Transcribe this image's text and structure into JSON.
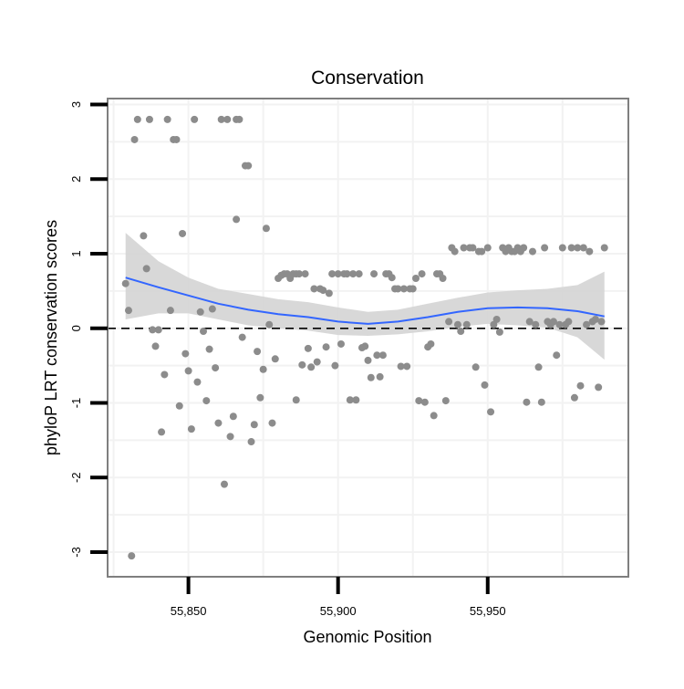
{
  "chart_data": {
    "type": "scatter",
    "title": "Conservation",
    "xlabel": "Genomic Position",
    "ylabel": "phyloP LRT conservation scores",
    "xlim": [
      55823,
      55997
    ],
    "ylim": [
      -3.33,
      3.08
    ],
    "x_ticks": [
      55850,
      55900,
      55950
    ],
    "x_tick_labels": [
      "55,850",
      "55,900",
      "55,950"
    ],
    "y_ticks": [
      -3,
      -2,
      -1,
      0,
      1,
      2,
      3
    ],
    "y_tick_labels": [
      "-3",
      "-2",
      "-1",
      "0",
      "1",
      "2",
      "3"
    ],
    "grid": true,
    "reference_line": {
      "y": 0,
      "style": "dashed",
      "color": "#000000"
    },
    "colors": {
      "points": "#8c8c8c",
      "smooth": "#3366ff",
      "ribbon": "#d4d4d4",
      "grid": "#f2f2f2",
      "frame": "#7f7f7f"
    },
    "series": [
      {
        "name": "phyloP LRT score",
        "kind": "points",
        "points": [
          [
            55829,
            0.6
          ],
          [
            55830,
            0.24
          ],
          [
            55831,
            -3.05
          ],
          [
            55832,
            2.53
          ],
          [
            55833,
            2.8
          ],
          [
            55835,
            1.24
          ],
          [
            55836,
            0.8
          ],
          [
            55837,
            2.8
          ],
          [
            55838,
            -0.02
          ],
          [
            55839,
            -0.24
          ],
          [
            55840,
            -0.02
          ],
          [
            55841,
            -1.39
          ],
          [
            55842,
            -0.62
          ],
          [
            55843,
            2.8
          ],
          [
            55844,
            0.24
          ],
          [
            55845,
            2.53
          ],
          [
            55846,
            2.53
          ],
          [
            55847,
            -1.04
          ],
          [
            55848,
            1.27
          ],
          [
            55849,
            -0.34
          ],
          [
            55850,
            -0.57
          ],
          [
            55851,
            -1.35
          ],
          [
            55852,
            2.8
          ],
          [
            55853,
            -0.72
          ],
          [
            55854,
            0.22
          ],
          [
            55855,
            -0.04
          ],
          [
            55856,
            -0.97
          ],
          [
            55857,
            -0.28
          ],
          [
            55858,
            0.26
          ],
          [
            55859,
            -0.53
          ],
          [
            55860,
            -1.27
          ],
          [
            55861,
            2.8
          ],
          [
            55862,
            -2.09
          ],
          [
            55863,
            2.8
          ],
          [
            55864,
            -1.45
          ],
          [
            55865,
            -1.18
          ],
          [
            55866,
            2.8
          ],
          [
            55866,
            1.46
          ],
          [
            55867,
            2.8
          ],
          [
            55868,
            -0.12
          ],
          [
            55869,
            2.18
          ],
          [
            55870,
            2.18
          ],
          [
            55871,
            -1.52
          ],
          [
            55872,
            -1.29
          ],
          [
            55873,
            -0.31
          ],
          [
            55874,
            -0.93
          ],
          [
            55875,
            -0.55
          ],
          [
            55876,
            1.34
          ],
          [
            55877,
            0.05
          ],
          [
            55878,
            -1.27
          ],
          [
            55879,
            -0.41
          ],
          [
            55880,
            0.67
          ],
          [
            55881,
            0.71
          ],
          [
            55882,
            0.73
          ],
          [
            55883,
            0.73
          ],
          [
            55884,
            0.67
          ],
          [
            55885,
            0.73
          ],
          [
            55886,
            0.73
          ],
          [
            55886,
            -0.96
          ],
          [
            55887,
            0.73
          ],
          [
            55888,
            -0.49
          ],
          [
            55889,
            0.73
          ],
          [
            55890,
            -0.27
          ],
          [
            55891,
            -0.52
          ],
          [
            55892,
            0.53
          ],
          [
            55893,
            -0.45
          ],
          [
            55894,
            0.53
          ],
          [
            55895,
            0.51
          ],
          [
            55896,
            -0.25
          ],
          [
            55897,
            0.47
          ],
          [
            55898,
            0.73
          ],
          [
            55899,
            -0.5
          ],
          [
            55900,
            0.73
          ],
          [
            55901,
            -0.21
          ],
          [
            55902,
            0.73
          ],
          [
            55903,
            0.73
          ],
          [
            55904,
            -0.96
          ],
          [
            55905,
            0.73
          ],
          [
            55906,
            -0.96
          ],
          [
            55907,
            0.73
          ],
          [
            55908,
            -0.26
          ],
          [
            55909,
            -0.24
          ],
          [
            55910,
            -0.43
          ],
          [
            55911,
            -0.66
          ],
          [
            55912,
            0.73
          ],
          [
            55913,
            -0.36
          ],
          [
            55914,
            -0.65
          ],
          [
            55915,
            -0.36
          ],
          [
            55916,
            0.73
          ],
          [
            55917,
            0.73
          ],
          [
            55918,
            0.68
          ],
          [
            55919,
            0.53
          ],
          [
            55920,
            0.53
          ],
          [
            55921,
            -0.51
          ],
          [
            55922,
            0.53
          ],
          [
            55923,
            -0.51
          ],
          [
            55924,
            0.53
          ],
          [
            55925,
            0.53
          ],
          [
            55926,
            0.67
          ],
          [
            55927,
            -0.97
          ],
          [
            55928,
            0.73
          ],
          [
            55929,
            -0.99
          ],
          [
            55930,
            -0.25
          ],
          [
            55931,
            -0.21
          ],
          [
            55932,
            -1.17
          ],
          [
            55933,
            0.73
          ],
          [
            55934,
            0.73
          ],
          [
            55935,
            0.67
          ],
          [
            55936,
            -0.97
          ],
          [
            55937,
            0.09
          ],
          [
            55938,
            1.08
          ],
          [
            55939,
            1.03
          ],
          [
            55940,
            0.05
          ],
          [
            55941,
            -0.04
          ],
          [
            55942,
            1.08
          ],
          [
            55943,
            0.05
          ],
          [
            55944,
            1.08
          ],
          [
            55945,
            1.08
          ],
          [
            55946,
            -0.52
          ],
          [
            55947,
            1.03
          ],
          [
            55948,
            1.03
          ],
          [
            55949,
            -0.76
          ],
          [
            55950,
            1.08
          ],
          [
            55951,
            -1.12
          ],
          [
            55952,
            0.05
          ],
          [
            55953,
            0.12
          ],
          [
            55954,
            -0.05
          ],
          [
            55955,
            1.08
          ],
          [
            55956,
            1.03
          ],
          [
            55957,
            1.08
          ],
          [
            55958,
            1.03
          ],
          [
            55959,
            1.03
          ],
          [
            55960,
            1.08
          ],
          [
            55961,
            1.03
          ],
          [
            55962,
            1.08
          ],
          [
            55963,
            -0.99
          ],
          [
            55964,
            0.09
          ],
          [
            55965,
            1.03
          ],
          [
            55966,
            0.05
          ],
          [
            55967,
            -0.52
          ],
          [
            55968,
            -0.99
          ],
          [
            55969,
            1.08
          ],
          [
            55970,
            0.09
          ],
          [
            55971,
            0.05
          ],
          [
            55972,
            0.09
          ],
          [
            55973,
            -0.36
          ],
          [
            55974,
            0.05
          ],
          [
            55975,
            1.08
          ],
          [
            55976,
            0.05
          ],
          [
            55977,
            0.09
          ],
          [
            55978,
            1.08
          ],
          [
            55979,
            -0.93
          ],
          [
            55980,
            1.08
          ],
          [
            55981,
            -0.77
          ],
          [
            55982,
            1.08
          ],
          [
            55983,
            0.05
          ],
          [
            55984,
            1.03
          ],
          [
            55985,
            0.09
          ],
          [
            55986,
            0.12
          ],
          [
            55987,
            -0.79
          ],
          [
            55988,
            0.09
          ],
          [
            55989,
            1.08
          ]
        ]
      },
      {
        "name": "loess smooth",
        "kind": "line",
        "x": [
          55829,
          55840,
          55850,
          55860,
          55870,
          55880,
          55890,
          55900,
          55910,
          55920,
          55930,
          55940,
          55950,
          55960,
          55970,
          55980,
          55989
        ],
        "y": [
          0.68,
          0.55,
          0.44,
          0.33,
          0.25,
          0.19,
          0.15,
          0.09,
          0.06,
          0.09,
          0.15,
          0.22,
          0.27,
          0.28,
          0.27,
          0.23,
          0.16
        ],
        "ci_lower": [
          0.12,
          0.2,
          0.2,
          0.12,
          0.04,
          0.0,
          -0.03,
          -0.09,
          -0.1,
          -0.08,
          -0.04,
          0.02,
          0.06,
          0.04,
          0.01,
          -0.12,
          -0.42
        ],
        "ci_upper": [
          1.28,
          0.9,
          0.68,
          0.53,
          0.46,
          0.39,
          0.35,
          0.28,
          0.22,
          0.25,
          0.33,
          0.41,
          0.48,
          0.51,
          0.53,
          0.58,
          0.76
        ]
      }
    ]
  }
}
